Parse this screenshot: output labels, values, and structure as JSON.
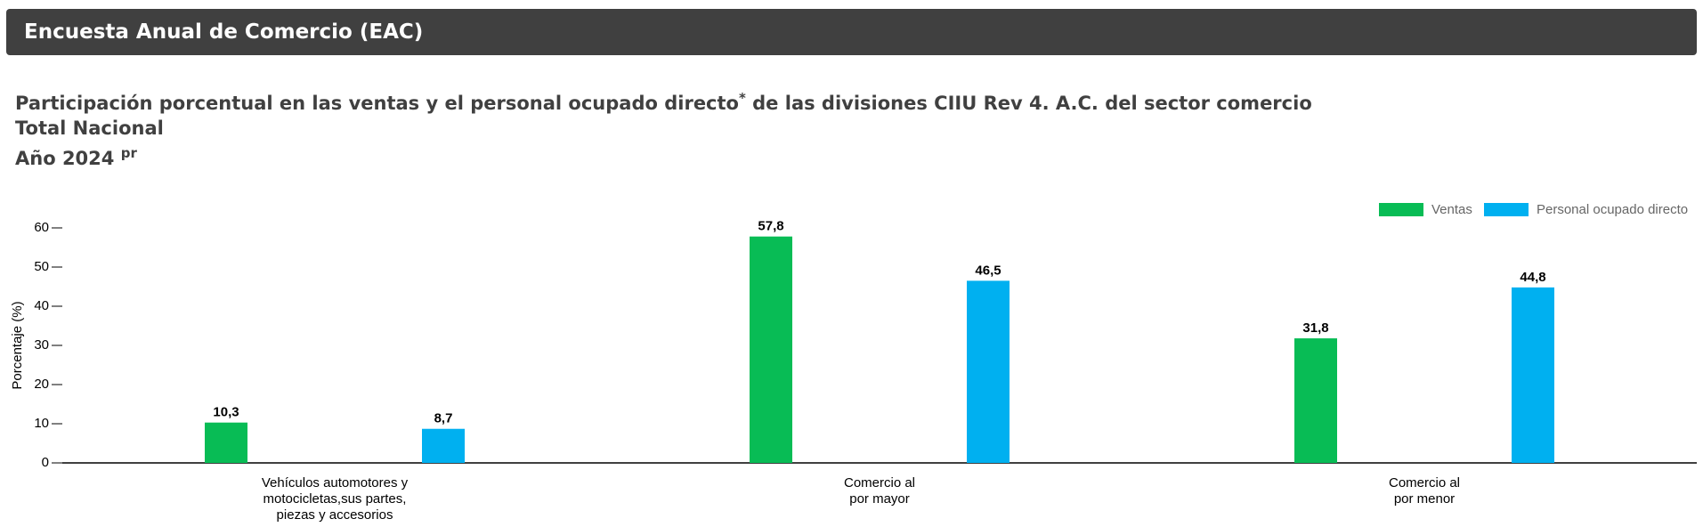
{
  "header": {
    "title": "Encuesta Anual de Comercio (EAC)"
  },
  "chart_data": {
    "type": "bar",
    "title": "Participación porcentual en las ventas y el personal ocupado directo",
    "title_note": "*",
    "title_rest": " de las divisiones CIIU Rev 4. A.C. del sector comercio",
    "subtitle": "Total Nacional",
    "year": "Año 2024",
    "year_note": "pr",
    "ylabel": "Porcentaje (%)",
    "categories": [
      [
        "Vehículos automotores y",
        "motocicletas,sus partes,",
        "piezas y accesorios"
      ],
      [
        "Comercio al",
        "por mayor"
      ],
      [
        "Comercio al",
        "por menor"
      ]
    ],
    "series": [
      {
        "name": "Ventas",
        "color": "#08bc55",
        "values": [
          10.3,
          57.8,
          31.8
        ],
        "value_labels": [
          "10,3",
          "57,8",
          "31,8"
        ]
      },
      {
        "name": "Personal ocupado directo",
        "color": "#00b0f0",
        "values": [
          8.7,
          46.5,
          44.8
        ],
        "value_labels": [
          "8,7",
          "46,5",
          "44,8"
        ]
      }
    ],
    "ylim": [
      0,
      60
    ],
    "yticks": [
      0,
      10,
      20,
      30,
      40,
      50,
      60
    ],
    "legend": "top-right"
  }
}
